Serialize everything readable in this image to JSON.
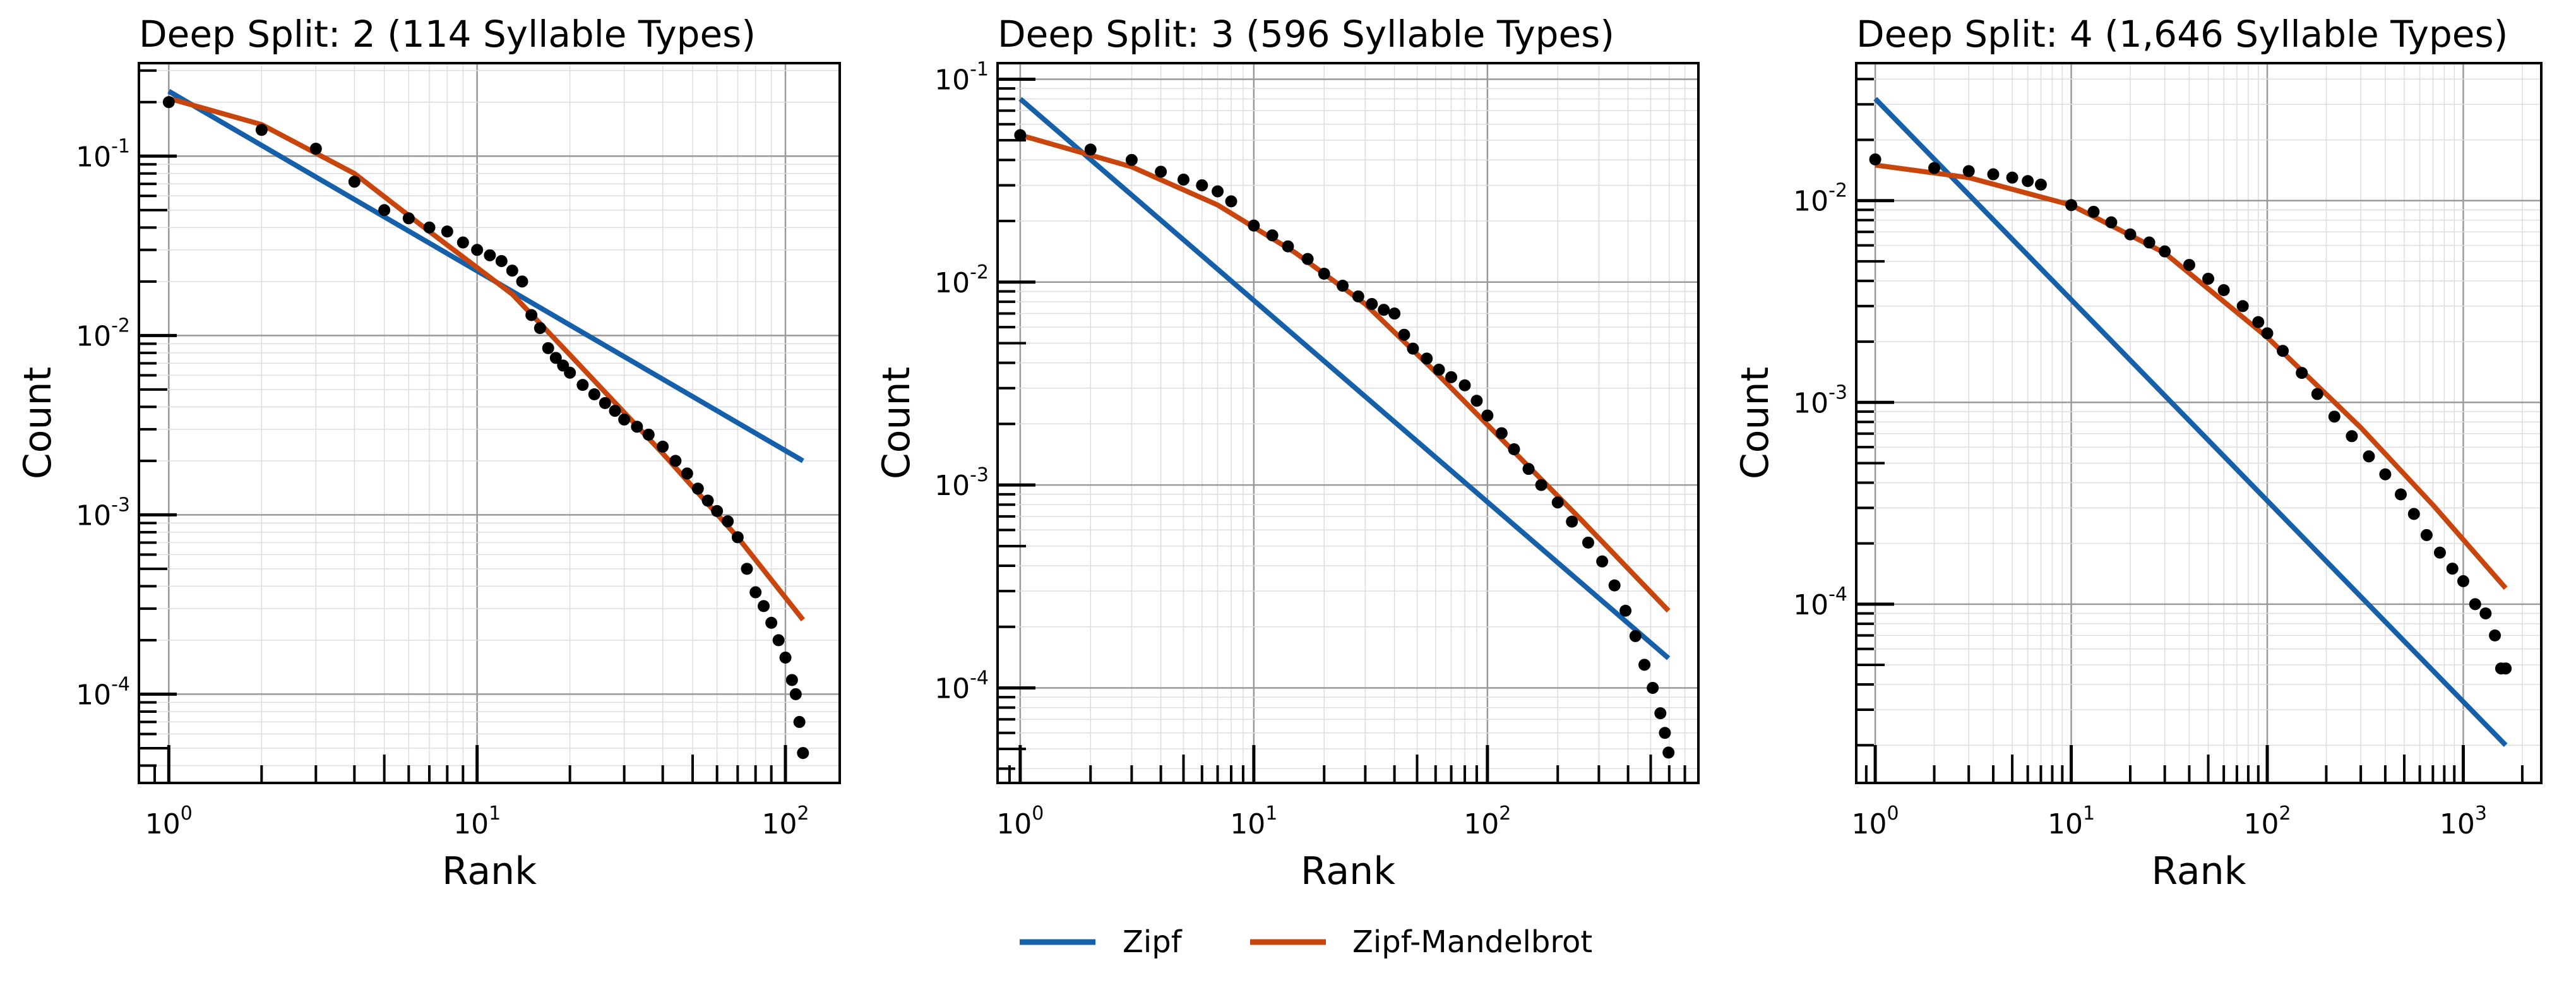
{
  "chart_data": [
    {
      "type": "scatter",
      "title": "Deep Split: 2 (114 Syllable Types)",
      "xlabel": "Rank",
      "ylabel": "Count",
      "xscale": "log",
      "yscale": "log",
      "xlim": [
        0.8,
        150
      ],
      "ylim": [
        3.2e-05,
        0.33
      ],
      "grid": true,
      "x_ticks": [
        {
          "base": "10",
          "exp": "0"
        },
        {
          "base": "10",
          "exp": "1"
        },
        {
          "base": "10",
          "exp": "2"
        }
      ],
      "y_ticks": [
        {
          "base": "10",
          "exp": "-4"
        },
        {
          "base": "10",
          "exp": "-3"
        },
        {
          "base": "10",
          "exp": "-2"
        },
        {
          "base": "10",
          "exp": "-1"
        }
      ],
      "series": [
        {
          "name": "Zipf",
          "kind": "line",
          "color": "#1560a8",
          "points": [
            [
              1,
              0.23
            ],
            [
              114,
              0.002
            ]
          ]
        },
        {
          "name": "Zipf-Mandelbrot",
          "kind": "line",
          "color": "#c8460e",
          "points": [
            [
              1,
              0.21
            ],
            [
              2,
              0.15
            ],
            [
              4,
              0.08
            ],
            [
              7,
              0.038
            ],
            [
              13,
              0.017
            ],
            [
              20,
              0.0078
            ],
            [
              40,
              0.0022
            ],
            [
              70,
              0.00075
            ],
            [
              114,
              0.00026
            ]
          ]
        },
        {
          "kind": "points",
          "color": "#000000",
          "points": [
            [
              1,
              0.2
            ],
            [
              2,
              0.14
            ],
            [
              3,
              0.11
            ],
            [
              4,
              0.072
            ],
            [
              5,
              0.05
            ],
            [
              6,
              0.045
            ],
            [
              7,
              0.04
            ],
            [
              8,
              0.038
            ],
            [
              9,
              0.033
            ],
            [
              10,
              0.03
            ],
            [
              11,
              0.028
            ],
            [
              12,
              0.026
            ],
            [
              13,
              0.023
            ],
            [
              14,
              0.02
            ],
            [
              15,
              0.013
            ],
            [
              16,
              0.011
            ],
            [
              17,
              0.0085
            ],
            [
              18,
              0.0075
            ],
            [
              19,
              0.0068
            ],
            [
              20,
              0.0062
            ],
            [
              22,
              0.0053
            ],
            [
              24,
              0.0047
            ],
            [
              26,
              0.0042
            ],
            [
              28,
              0.0038
            ],
            [
              30,
              0.0034
            ],
            [
              33,
              0.0031
            ],
            [
              36,
              0.0028
            ],
            [
              40,
              0.0024
            ],
            [
              44,
              0.002
            ],
            [
              48,
              0.0017
            ],
            [
              52,
              0.0014
            ],
            [
              56,
              0.0012
            ],
            [
              60,
              0.00105
            ],
            [
              65,
              0.00092
            ],
            [
              70,
              0.00075
            ],
            [
              75,
              0.0005
            ],
            [
              80,
              0.00037
            ],
            [
              85,
              0.00031
            ],
            [
              90,
              0.00025
            ],
            [
              95,
              0.0002
            ],
            [
              100,
              0.00016
            ],
            [
              105,
              0.00012
            ],
            [
              108,
              0.0001
            ],
            [
              111,
              7e-05
            ],
            [
              114,
              4.7e-05
            ]
          ]
        }
      ]
    },
    {
      "type": "scatter",
      "title": "Deep Split: 3 (596 Syllable Types)",
      "xlabel": "Rank",
      "ylabel": "Count",
      "xscale": "log",
      "yscale": "log",
      "xlim": [
        0.8,
        800
      ],
      "ylim": [
        3.4e-05,
        0.12
      ],
      "grid": true,
      "x_ticks": [
        {
          "base": "10",
          "exp": "0"
        },
        {
          "base": "10",
          "exp": "1"
        },
        {
          "base": "10",
          "exp": "2"
        }
      ],
      "y_ticks": [
        {
          "base": "10",
          "exp": "-4"
        },
        {
          "base": "10",
          "exp": "-3"
        },
        {
          "base": "10",
          "exp": "-2"
        },
        {
          "base": "10",
          "exp": "-1"
        }
      ],
      "series": [
        {
          "name": "Zipf",
          "kind": "line",
          "color": "#1560a8",
          "points": [
            [
              1,
              0.08
            ],
            [
              596,
              0.00014
            ]
          ]
        },
        {
          "name": "Zipf-Mandelbrot",
          "kind": "line",
          "color": "#c8460e",
          "points": [
            [
              1,
              0.053
            ],
            [
              3,
              0.037
            ],
            [
              7,
              0.024
            ],
            [
              15,
              0.014
            ],
            [
              30,
              0.0078
            ],
            [
              60,
              0.0036
            ],
            [
              120,
              0.0016
            ],
            [
              250,
              0.00068
            ],
            [
              596,
              0.00024
            ]
          ]
        },
        {
          "kind": "points",
          "color": "#000000",
          "points": [
            [
              1,
              0.053
            ],
            [
              2,
              0.045
            ],
            [
              3,
              0.04
            ],
            [
              4,
              0.035
            ],
            [
              5,
              0.032
            ],
            [
              6,
              0.03
            ],
            [
              7,
              0.028
            ],
            [
              8,
              0.025
            ],
            [
              10,
              0.019
            ],
            [
              12,
              0.017
            ],
            [
              14,
              0.015
            ],
            [
              17,
              0.013
            ],
            [
              20,
              0.011
            ],
            [
              24,
              0.0096
            ],
            [
              28,
              0.0085
            ],
            [
              32,
              0.0078
            ],
            [
              36,
              0.0073
            ],
            [
              40,
              0.007
            ],
            [
              44,
              0.0055
            ],
            [
              48,
              0.0047
            ],
            [
              55,
              0.0042
            ],
            [
              62,
              0.0037
            ],
            [
              70,
              0.0034
            ],
            [
              80,
              0.0031
            ],
            [
              90,
              0.0026
            ],
            [
              100,
              0.0022
            ],
            [
              115,
              0.0018
            ],
            [
              130,
              0.0015
            ],
            [
              150,
              0.0012
            ],
            [
              170,
              0.001
            ],
            [
              200,
              0.00082
            ],
            [
              230,
              0.00066
            ],
            [
              270,
              0.00052
            ],
            [
              310,
              0.00042
            ],
            [
              350,
              0.00032
            ],
            [
              390,
              0.00024
            ],
            [
              430,
              0.00018
            ],
            [
              470,
              0.00013
            ],
            [
              510,
              0.0001
            ],
            [
              550,
              7.5e-05
            ],
            [
              575,
              6e-05
            ],
            [
              596,
              4.8e-05
            ]
          ]
        }
      ]
    },
    {
      "type": "scatter",
      "title": "Deep Split: 4 (1,646 Syllable Types)",
      "xlabel": "Rank",
      "ylabel": "Count",
      "xscale": "log",
      "yscale": "log",
      "xlim": [
        0.8,
        2500
      ],
      "ylim": [
        1.3e-05,
        0.048
      ],
      "grid": true,
      "x_ticks": [
        {
          "base": "10",
          "exp": "0"
        },
        {
          "base": "10",
          "exp": "1"
        },
        {
          "base": "10",
          "exp": "2"
        },
        {
          "base": "10",
          "exp": "3"
        }
      ],
      "y_ticks": [
        {
          "base": "10",
          "exp": "-4"
        },
        {
          "base": "10",
          "exp": "-3"
        },
        {
          "base": "10",
          "exp": "-2"
        }
      ],
      "series": [
        {
          "name": "Zipf",
          "kind": "line",
          "color": "#1560a8",
          "points": [
            [
              1,
              0.032
            ],
            [
              1646,
              2e-05
            ]
          ]
        },
        {
          "name": "Zipf-Mandelbrot",
          "kind": "line",
          "color": "#c8460e",
          "points": [
            [
              1,
              0.015
            ],
            [
              3,
              0.013
            ],
            [
              10,
              0.0095
            ],
            [
              30,
              0.0055
            ],
            [
              100,
              0.0021
            ],
            [
              300,
              0.00075
            ],
            [
              700,
              0.00031
            ],
            [
              1646,
              0.00012
            ]
          ]
        },
        {
          "kind": "points",
          "color": "#000000",
          "points": [
            [
              1,
              0.016
            ],
            [
              2,
              0.0145
            ],
            [
              3,
              0.014
            ],
            [
              4,
              0.0135
            ],
            [
              5,
              0.013
            ],
            [
              6,
              0.0125
            ],
            [
              7,
              0.012
            ],
            [
              10,
              0.0095
            ],
            [
              13,
              0.0088
            ],
            [
              16,
              0.0078
            ],
            [
              20,
              0.0068
            ],
            [
              25,
              0.0062
            ],
            [
              30,
              0.0056
            ],
            [
              40,
              0.0048
            ],
            [
              50,
              0.0041
            ],
            [
              60,
              0.0036
            ],
            [
              75,
              0.003
            ],
            [
              90,
              0.0025
            ],
            [
              100,
              0.0022
            ],
            [
              120,
              0.0018
            ],
            [
              150,
              0.0014
            ],
            [
              180,
              0.0011
            ],
            [
              220,
              0.00085
            ],
            [
              270,
              0.00068
            ],
            [
              330,
              0.00054
            ],
            [
              400,
              0.00044
            ],
            [
              480,
              0.00035
            ],
            [
              560,
              0.00028
            ],
            [
              650,
              0.00022
            ],
            [
              760,
              0.00018
            ],
            [
              880,
              0.00015
            ],
            [
              1000,
              0.00013
            ],
            [
              1150,
              0.0001
            ],
            [
              1300,
              9e-05
            ],
            [
              1450,
              7e-05
            ],
            [
              1560,
              4.8e-05
            ],
            [
              1646,
              4.8e-05
            ]
          ]
        }
      ]
    }
  ],
  "legend": {
    "items": [
      {
        "label": "Zipf",
        "color": "#1560a8"
      },
      {
        "label": "Zipf-Mandelbrot",
        "color": "#c8460e"
      }
    ]
  }
}
